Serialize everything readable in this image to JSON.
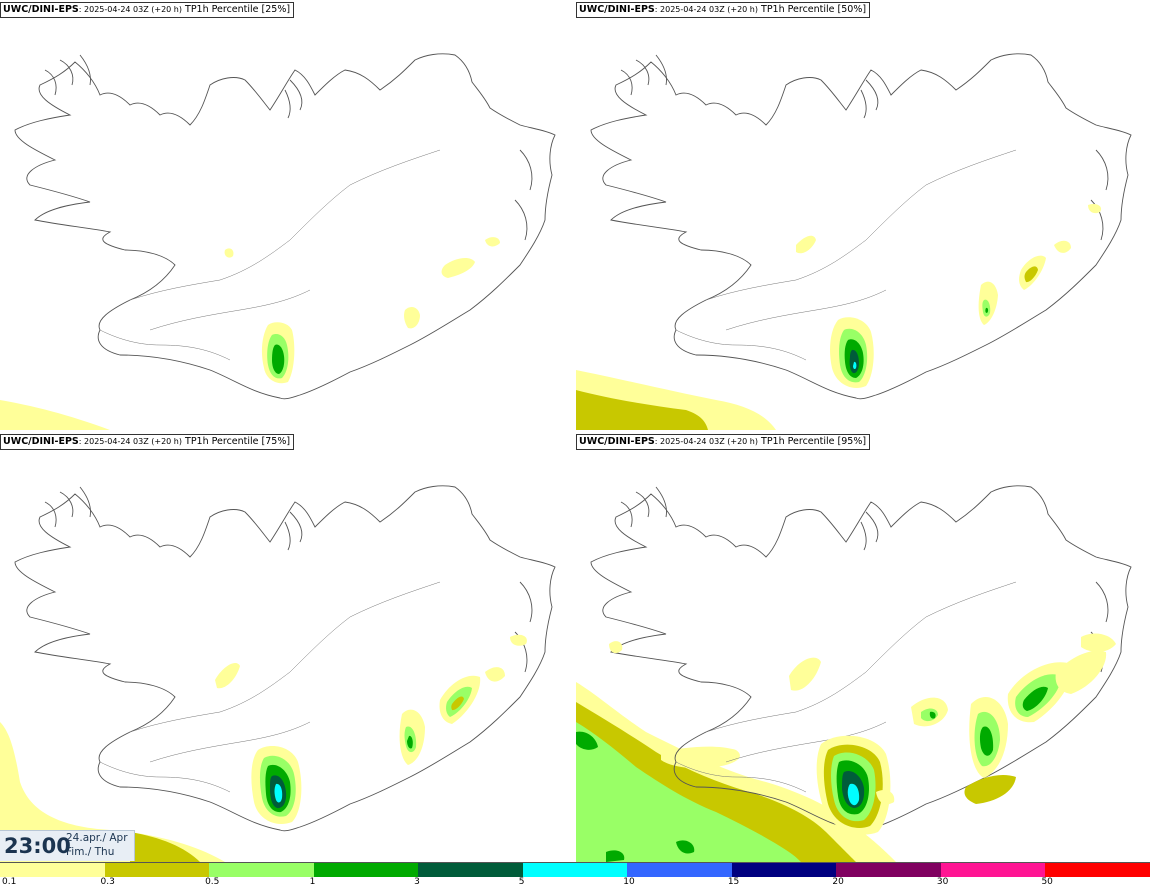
{
  "panels": [
    {
      "brand": "UWC/DINI-EPS",
      "run": ": 2025-04-24 03Z (+20 h)",
      "field": " TP1h Percentile [25%]"
    },
    {
      "brand": "UWC/DINI-EPS",
      "run": ": 2025-04-24 03Z (+20 h)",
      "field": " TP1h Percentile [50%]"
    },
    {
      "brand": "UWC/DINI-EPS",
      "run": ": 2025-04-24 03Z (+20 h)",
      "field": " TP1h Percentile [75%]"
    },
    {
      "brand": "UWC/DINI-EPS",
      "run": ": 2025-04-24 03Z (+20 h)",
      "field": " TP1h Percentile [95%]"
    }
  ],
  "valid_time": {
    "time": "23:00",
    "date": "24.apr./ Apr",
    "day": "Fim./ Thu"
  },
  "legend": {
    "ticks": [
      "0.1",
      "0.3",
      "0.5",
      "1",
      "3",
      "5",
      "10",
      "15",
      "20",
      "30",
      "50"
    ],
    "colors": [
      "#ffff99",
      "#c8c800",
      "#99ff66",
      "#00aa00",
      "#005c3a",
      "#00ffff",
      "#3366ff",
      "#000080",
      "#800060",
      "#ff1493",
      "#ff0000"
    ]
  },
  "colors": {
    "coast": "#555555",
    "land": "#ffffff",
    "sea": "#ffffff",
    "very_light": "#ffff99",
    "light": "#c8c800",
    "moderate": "#99ff66",
    "strong": "#00aa00",
    "heavy": "#005c3a",
    "very_heavy": "#00ffff"
  }
}
